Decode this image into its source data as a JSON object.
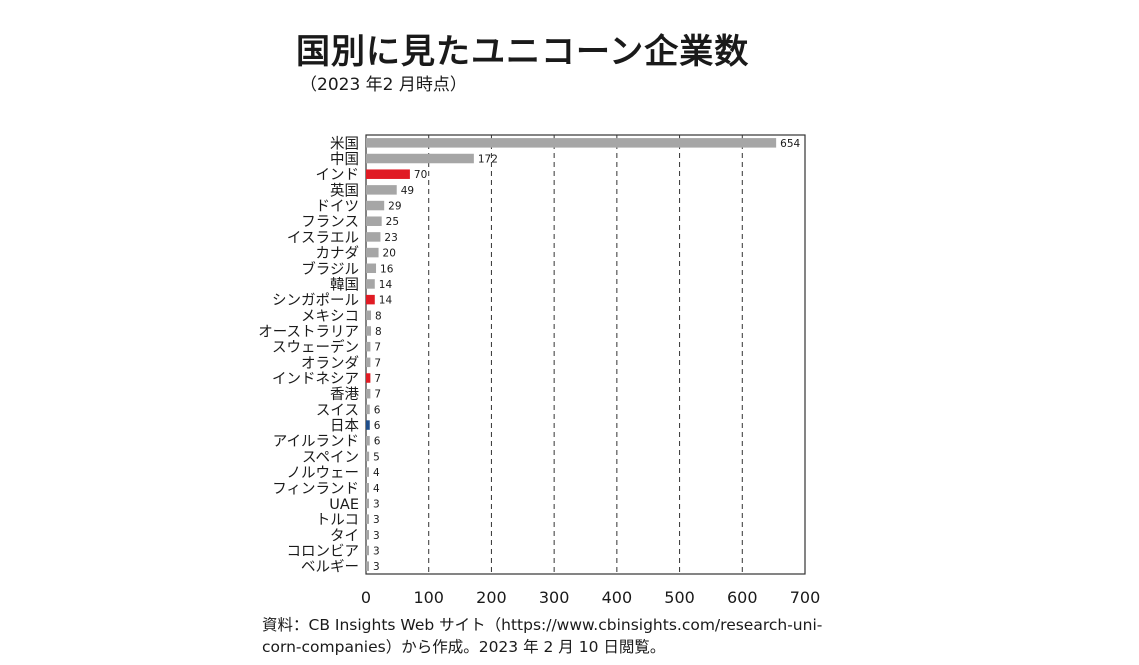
{
  "title": "国別に見たユニコーン企業数",
  "subtitle": "（2023 年2 月時点）",
  "source": {
    "line1": "資料：CB Insights Web サイト（https://www.cbinsights.com/research-uni-",
    "line2": "corn-companies）から作成。2023 年 2 月 10 日閲覧。"
  },
  "colors": {
    "default": "#a6a6a6",
    "highlight": "#e01b24",
    "japan": "#1f4e8c"
  },
  "chart_data": {
    "type": "bar",
    "orientation": "horizontal",
    "categories": [
      "米国",
      "中国",
      "インド",
      "英国",
      "ドイツ",
      "フランス",
      "イスラエル",
      "カナダ",
      "ブラジル",
      "韓国",
      "シンガポール",
      "メキシコ",
      "オーストラリア",
      "スウェーデン",
      "オランダ",
      "インドネシア",
      "香港",
      "スイス",
      "日本",
      "アイルランド",
      "スペイン",
      "ノルウェー",
      "フィンランド",
      "UAE",
      "トルコ",
      "タイ",
      "コロンビア",
      "ベルギー"
    ],
    "values": [
      654,
      172,
      70,
      49,
      29,
      25,
      23,
      20,
      16,
      14,
      14,
      8,
      8,
      7,
      7,
      7,
      7,
      6,
      6,
      6,
      5,
      4,
      4,
      3,
      3,
      3,
      3,
      3
    ],
    "value_labels": [
      "654",
      "172",
      "70",
      "49",
      "29",
      "25",
      "23",
      "20",
      "16",
      "14",
      "14",
      "8",
      "8",
      "7",
      "7",
      "7",
      "7",
      "6",
      "6",
      "6",
      "5",
      "4",
      "4",
      "3",
      "3",
      "3",
      "3",
      "3"
    ],
    "bar_colors": [
      "default",
      "default",
      "highlight",
      "default",
      "default",
      "default",
      "default",
      "default",
      "default",
      "default",
      "highlight",
      "default",
      "default",
      "default",
      "default",
      "highlight",
      "default",
      "default",
      "japan",
      "default",
      "default",
      "default",
      "default",
      "default",
      "default",
      "default",
      "default",
      "default"
    ],
    "xlim": [
      0,
      700
    ],
    "xticks": [
      "0",
      "100",
      "200",
      "300",
      "400",
      "500",
      "600",
      "700"
    ],
    "grid": "vertical-dashed"
  }
}
